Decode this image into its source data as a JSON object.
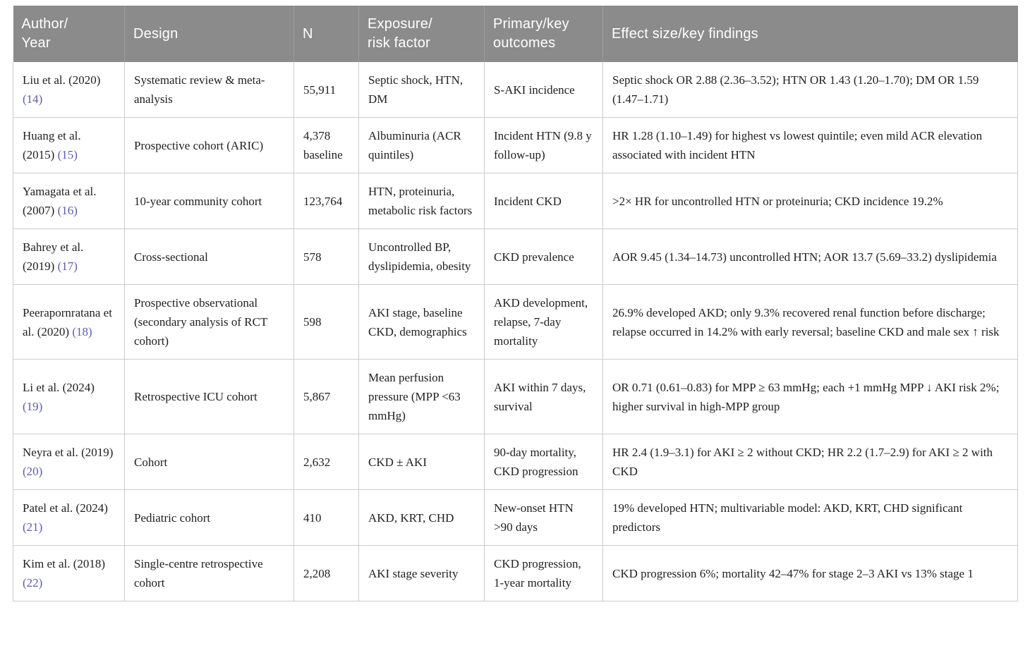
{
  "colors": {
    "header_bg": "#8b8b8b",
    "header_separator": "#9e9e9e",
    "cell_border": "#cccccc",
    "citation_link": "#5c5ca9",
    "body_text": "#212121",
    "header_text": "#ffffff"
  },
  "header": {
    "columns": [
      "Author/\nYear",
      "Design",
      "N",
      "Exposure/\nrisk factor",
      "Primary/key\noutcomes",
      "Effect size/key findings"
    ]
  },
  "rows": [
    {
      "author": "Liu et al. (2020)",
      "ref": "(14)",
      "design": "Systematic review & meta-analysis",
      "n": "55,911",
      "exposure": "Septic shock, HTN, DM",
      "outcomes": "S-AKI incidence",
      "effect": "Septic shock OR 2.88 (2.36–3.52); HTN OR 1.43 (1.20–1.70); DM OR 1.59 (1.47–1.71)"
    },
    {
      "author": "Huang et al. (2015)",
      "ref": "(15)",
      "design": "Prospective cohort (ARIC)",
      "n": "4,378 baseline",
      "exposure": "Albuminuria (ACR quintiles)",
      "outcomes": "Incident HTN (9.8 y follow-up)",
      "effect": "HR 1.28 (1.10–1.49) for highest vs lowest quintile; even mild ACR elevation associated with incident HTN"
    },
    {
      "author": "Yamagata et al. (2007)",
      "ref": "(16)",
      "design": "10-year community cohort",
      "n": "123,764",
      "exposure": "HTN, proteinuria, metabolic risk factors",
      "outcomes": "Incident CKD",
      "effect": ">2× HR for uncontrolled HTN or proteinuria; CKD incidence 19.2%"
    },
    {
      "author": "Bahrey et al. (2019)",
      "ref": "(17)",
      "design": "Cross-sectional",
      "n": "578",
      "exposure": "Uncontrolled BP, dyslipidemia, obesity",
      "outcomes": "CKD prevalence",
      "effect": "AOR 9.45 (1.34–14.73) uncontrolled HTN; AOR 13.7 (5.69–33.2) dyslipidemia"
    },
    {
      "author": "Peerapornratana et al. (2020)",
      "ref": "(18)",
      "design": "Prospective observational (secondary analysis of RCT cohort)",
      "n": "598",
      "exposure": "AKI stage, baseline CKD, demographics",
      "outcomes": "AKD development, relapse, 7-day mortality",
      "effect": "26.9% developed AKD; only 9.3% recovered renal function before discharge; relapse occurred in 14.2% with early reversal; baseline CKD and male sex ↑ risk"
    },
    {
      "author": "Li et al. (2024)",
      "ref": "(19)",
      "design": "Retrospective ICU cohort",
      "n": "5,867",
      "exposure": "Mean perfusion pressure (MPP <63 mmHg)",
      "outcomes": "AKI within 7 days, survival",
      "effect": "OR 0.71 (0.61–0.83) for MPP ≥ 63 mmHg; each +1 mmHg MPP ↓ AKI risk 2%; higher survival in high-MPP group"
    },
    {
      "author": "Neyra et al. (2019)",
      "ref": "(20)",
      "design": "Cohort",
      "n": "2,632",
      "exposure": "CKD ± AKI",
      "outcomes": "90-day mortality, CKD progression",
      "effect": "HR 2.4 (1.9–3.1) for AKI ≥ 2 without CKD; HR 2.2 (1.7–2.9) for AKI ≥ 2 with CKD"
    },
    {
      "author": "Patel et al. (2024)",
      "ref": "(21)",
      "design": "Pediatric cohort",
      "n": "410",
      "exposure": "AKD, KRT, CHD",
      "outcomes": "New-onset HTN >90 days",
      "effect": "19% developed HTN; multivariable model: AKD, KRT, CHD significant predictors"
    },
    {
      "author": "Kim et al. (2018)",
      "ref": "(22)",
      "design": "Single-centre retrospective cohort",
      "n": "2,208",
      "exposure": "AKI stage severity",
      "outcomes": "CKD progression, 1-year mortality",
      "effect": "CKD progression 6%; mortality 42–47% for stage 2–3 AKI vs 13% stage 1"
    }
  ]
}
